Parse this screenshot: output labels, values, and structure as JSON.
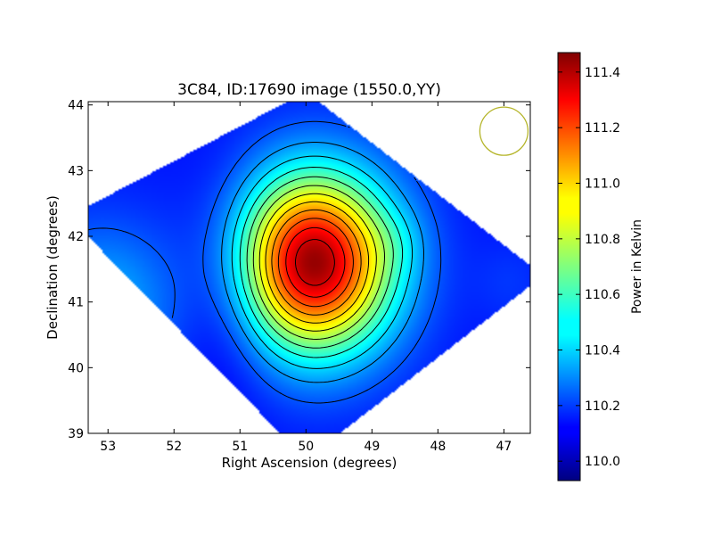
{
  "chart_data": {
    "type": "heatmap",
    "title": "3C84, ID:17690 image (1550.0,YY)",
    "xlabel": "Right Ascension (degrees)",
    "ylabel": "Declination (degrees)",
    "xlim": [
      53.3,
      46.6
    ],
    "ylim": [
      39.0,
      44.05
    ],
    "x_reversed": true,
    "x_ticks": [
      53,
      52,
      51,
      50,
      49,
      48,
      47
    ],
    "y_ticks": [
      39,
      40,
      41,
      42,
      43,
      44
    ],
    "colorbar": {
      "label": "Power in Kelvin",
      "range": [
        109.93,
        111.47
      ],
      "ticks": [
        "110.0",
        "110.2",
        "110.4",
        "110.6",
        "110.8",
        "111.0",
        "111.2",
        "111.4"
      ],
      "colormap": "jet"
    },
    "field_footprint": {
      "shape": "diamond",
      "corners": [
        [
          50.0,
          44.2
        ],
        [
          53.6,
          42.3
        ],
        [
          50.0,
          38.6
        ],
        [
          46.4,
          41.4
        ]
      ]
    },
    "background_level": 110.15,
    "peak": {
      "ra": 49.9,
      "dec": 41.6,
      "value": 111.45
    },
    "secondary_features": [
      {
        "ra": 53.1,
        "dec": 40.9,
        "value": 110.4,
        "kind": "local maximum"
      },
      {
        "ra": 51.1,
        "dec": 41.3,
        "value": 109.97,
        "kind": "local minimum"
      },
      {
        "ra": 48.6,
        "dec": 41.9,
        "value": 110.2,
        "kind": "local maximum"
      },
      {
        "ra": 46.9,
        "dec": 41.3,
        "value": 110.2,
        "kind": "local maximum"
      }
    ],
    "contour_levels": [
      110.0,
      110.15,
      110.25,
      110.35,
      110.45,
      110.55,
      110.65,
      110.75,
      110.85,
      110.95,
      111.05,
      111.15,
      111.25,
      111.35
    ],
    "beam_marker": {
      "ra": 47.0,
      "dec": 43.6,
      "shape": "circle",
      "color": "#b5b52a"
    },
    "grid": false,
    "legend": "none"
  }
}
